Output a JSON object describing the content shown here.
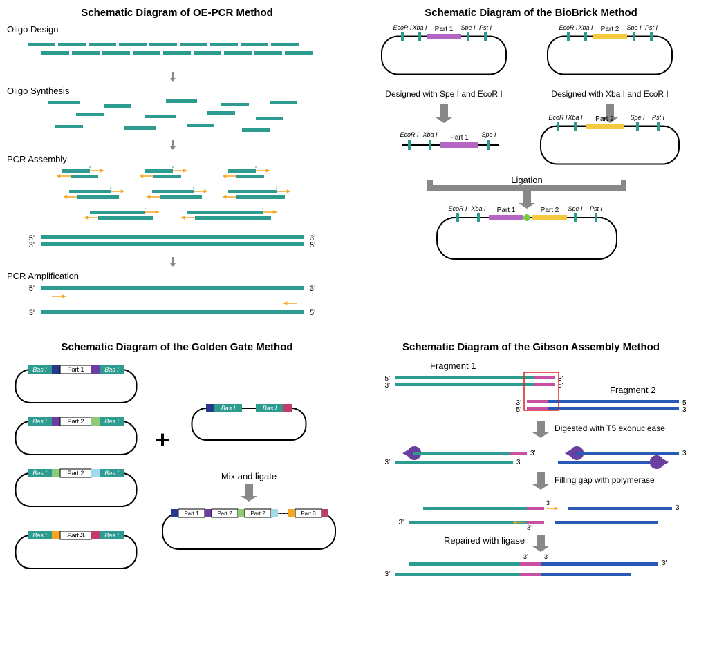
{
  "colors": {
    "teal": "#2e9b91",
    "orange": "#f5a623",
    "gray": "#888888",
    "purple": "#b565c4",
    "yellow": "#f5c93d",
    "blue": "#2959b5",
    "lightblue": "#a2d9ef",
    "green": "#8fc97a",
    "red": "#c03333",
    "navy": "#253a8a",
    "magenta": "#c94fa0",
    "darkpurple": "#6b3fa0",
    "black": "#000000"
  },
  "panelA": {
    "title": "Schematic Diagram of OE-PCR Method",
    "steps": [
      "Oligo Design",
      "Oligo Synthesis",
      "PCR Assembly",
      "PCR Amplification"
    ],
    "end5": "5'",
    "end3": "3'"
  },
  "panelB": {
    "title": "Schematic Diagram of the BioBrick Method",
    "enzymes": [
      "EcoR I",
      "Xba I",
      "Spe I",
      "Pst I"
    ],
    "part1": "Part 1",
    "part2": "Part 2",
    "ligate": "Ligation",
    "leftNote": "Designed with Spe I and EcoR I",
    "rightNote": "Designed with Xba I and EcoR I"
  },
  "panelC": {
    "title": "Schematic Diagram of the Golden Gate Method",
    "bas": "Bas I",
    "part1": "Part 1",
    "part2": "Part 2",
    "part3": "Part 3",
    "mix": "Mix and ligate"
  },
  "panelD": {
    "title": "Schematic Diagram of the Gibson Assembly Method",
    "frag1": "Fragment 1",
    "frag2": "Fragment 2",
    "step1": "Digested with T5 exonuclease",
    "step2": "Filling gap with polymerase",
    "step3": "Repaired with ligase",
    "end5": "5'",
    "end3": "3'"
  }
}
